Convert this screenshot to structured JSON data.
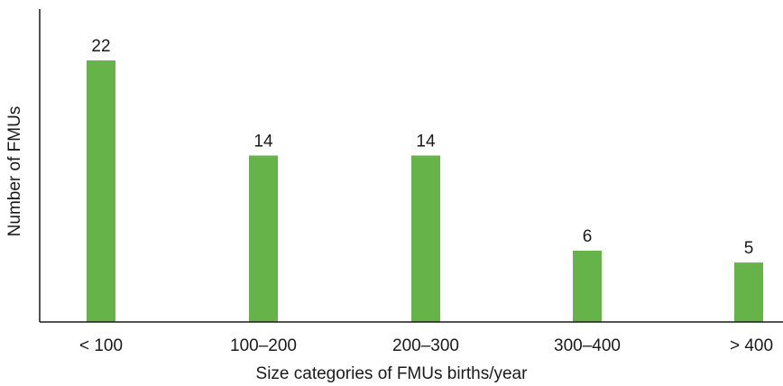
{
  "chart_data": {
    "type": "bar",
    "categories": [
      "< 100",
      "100–200",
      "200–300",
      "300–400",
      "> 400"
    ],
    "values": [
      22,
      14,
      14,
      6,
      5
    ],
    "xlabel": "Size categories of FMUs births/year",
    "ylabel": "Number of FMUs",
    "ylim": [
      0,
      22
    ],
    "grid": false,
    "data_labels": true,
    "bar_color": "#66b34a"
  }
}
